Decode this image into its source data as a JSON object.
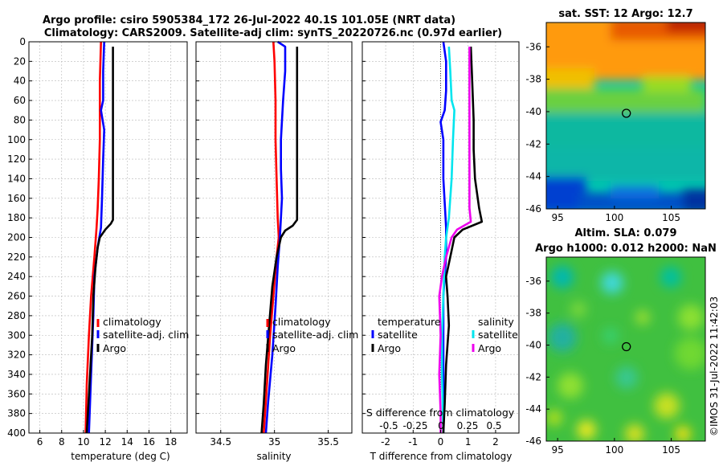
{
  "title_line1": "Argo profile: csiro 5905384_172 26-Jul-2022 40.1S 101.05E (NRT data)",
  "title_line2": "Climatology: CARS2009. Satellite-adj clim: synTS_20220726.nc (0.97d earlier)",
  "watermark": "©IMOS 31-Jul-2022 11:42:03",
  "colors": {
    "climatology": "#ff0000",
    "satellite_adj": "#0000ff",
    "argo": "#000000",
    "salinity_sat": "#00e5ee",
    "salinity_argo": "#ee00ee"
  },
  "chart_data": [
    {
      "type": "line",
      "id": "temperature",
      "xlabel": "temperature (deg C)",
      "xlim": [
        5,
        19.5
      ],
      "xticks": [
        6,
        8,
        10,
        12,
        14,
        16,
        18
      ],
      "xtick_labels": [
        "6",
        "8",
        "10",
        "12",
        "14",
        "16",
        "18"
      ],
      "ylim": [
        0,
        400
      ],
      "yticks": [
        0,
        20,
        40,
        60,
        80,
        100,
        120,
        140,
        160,
        180,
        200,
        220,
        240,
        260,
        280,
        300,
        320,
        340,
        360,
        380,
        400
      ],
      "ytick_labels": [
        "0",
        "20",
        "40",
        "60",
        "80",
        "100",
        "120",
        "140",
        "160",
        "180",
        "200",
        "220",
        "240",
        "260",
        "280",
        "300",
        "320",
        "340",
        "360",
        "380",
        "400"
      ],
      "legend": [
        "climatology",
        "satellite-adj. clim",
        "Argo"
      ],
      "series": [
        {
          "name": "climatology",
          "color": "#ff0000",
          "points": [
            [
              11.6,
              0
            ],
            [
              11.5,
              40
            ],
            [
              11.5,
              70
            ],
            [
              11.5,
              100
            ],
            [
              11.4,
              140
            ],
            [
              11.3,
              170
            ],
            [
              11.2,
              190
            ],
            [
              11.0,
              220
            ],
            [
              10.7,
              260
            ],
            [
              10.5,
              300
            ],
            [
              10.3,
              350
            ],
            [
              10.2,
              400
            ]
          ]
        },
        {
          "name": "satellite-adj. clim",
          "color": "#0000ff",
          "points": [
            [
              11.9,
              0
            ],
            [
              11.8,
              30
            ],
            [
              11.8,
              60
            ],
            [
              11.6,
              70
            ],
            [
              11.9,
              90
            ],
            [
              11.8,
              120
            ],
            [
              11.7,
              160
            ],
            [
              11.6,
              190
            ],
            [
              11.3,
              210
            ],
            [
              11.0,
              240
            ],
            [
              10.9,
              280
            ],
            [
              10.7,
              340
            ],
            [
              10.5,
              400
            ]
          ]
        },
        {
          "name": "Argo",
          "color": "#000000",
          "points": [
            [
              12.7,
              5
            ],
            [
              12.7,
              60
            ],
            [
              12.7,
              120
            ],
            [
              12.7,
              182
            ],
            [
              12.5,
              186
            ],
            [
              12.0,
              192
            ],
            [
              11.5,
              200
            ],
            [
              11.3,
              210
            ],
            [
              11.1,
              230
            ],
            [
              10.9,
              260
            ],
            [
              10.8,
              300
            ],
            [
              10.6,
              340
            ],
            [
              10.4,
              380
            ],
            [
              10.3,
              400
            ]
          ]
        }
      ]
    },
    {
      "type": "line",
      "id": "salinity",
      "xlabel": "salinity",
      "xlim": [
        34.27,
        35.72
      ],
      "xticks": [
        34.5,
        35,
        35.5
      ],
      "xtick_labels": [
        "34.5",
        "35",
        "35.5"
      ],
      "ylim": [
        0,
        400
      ],
      "legend": [
        "climatology",
        "satellite-adj. clim",
        "Argo"
      ],
      "series": [
        {
          "name": "climatology",
          "color": "#ff0000",
          "points": [
            [
              34.99,
              0
            ],
            [
              35.0,
              20
            ],
            [
              35.01,
              60
            ],
            [
              35.01,
              100
            ],
            [
              35.02,
              140
            ],
            [
              35.03,
              180
            ],
            [
              35.04,
              200
            ],
            [
              35.02,
              220
            ],
            [
              34.99,
              260
            ],
            [
              34.96,
              300
            ],
            [
              34.93,
              350
            ],
            [
              34.9,
              400
            ]
          ]
        },
        {
          "name": "satellite-adj. clim",
          "color": "#0000ff",
          "points": [
            [
              35.03,
              0
            ],
            [
              35.1,
              5
            ],
            [
              35.1,
              30
            ],
            [
              35.08,
              60
            ],
            [
              35.06,
              100
            ],
            [
              35.06,
              130
            ],
            [
              35.07,
              160
            ],
            [
              35.05,
              200
            ],
            [
              35.03,
              230
            ],
            [
              35.01,
              270
            ],
            [
              34.98,
              320
            ],
            [
              34.94,
              370
            ],
            [
              34.92,
              400
            ]
          ]
        },
        {
          "name": "Argo",
          "color": "#000000",
          "points": [
            [
              35.21,
              5
            ],
            [
              35.21,
              60
            ],
            [
              35.21,
              120
            ],
            [
              35.21,
              182
            ],
            [
              35.17,
              188
            ],
            [
              35.1,
              193
            ],
            [
              35.06,
              200
            ],
            [
              35.02,
              220
            ],
            [
              34.98,
              250
            ],
            [
              34.95,
              290
            ],
            [
              34.92,
              330
            ],
            [
              34.9,
              370
            ],
            [
              34.88,
              400
            ]
          ]
        }
      ]
    },
    {
      "type": "line",
      "id": "difference",
      "xlabel": "T difference from climatology",
      "secondary_xlabel": "S difference from climatology",
      "xlim": [
        -2.85,
        2.85
      ],
      "xticks": [
        -2,
        -1,
        0,
        1,
        2
      ],
      "xtick_labels": [
        "-2",
        "-1",
        "0",
        "1",
        "2"
      ],
      "secondary_xtick_labels": [
        "-0.5",
        "-0.25",
        "0",
        "0.25",
        "0.5"
      ],
      "ylim": [
        0,
        400
      ],
      "legend_left_title": "temperature",
      "legend_right_title": "salinity",
      "legend_left": [
        "satellite",
        "Argo"
      ],
      "legend_right": [
        "satellite",
        "Argo"
      ],
      "series": [
        {
          "name": "T satellite",
          "color": "#0000ff",
          "points": [
            [
              0.1,
              0
            ],
            [
              0.2,
              20
            ],
            [
              0.2,
              50
            ],
            [
              0.15,
              70
            ],
            [
              0.0,
              82
            ],
            [
              0.1,
              100
            ],
            [
              0.1,
              140
            ],
            [
              0.2,
              190
            ],
            [
              0.2,
              220
            ],
            [
              0.1,
              260
            ],
            [
              0.1,
              300
            ],
            [
              0.1,
              350
            ],
            [
              0.1,
              400
            ]
          ]
        },
        {
          "name": "S satellite",
          "color": "#00e5ee",
          "points": [
            [
              0.3,
              5
            ],
            [
              0.35,
              30
            ],
            [
              0.4,
              60
            ],
            [
              0.5,
              70
            ],
            [
              0.45,
              100
            ],
            [
              0.4,
              140
            ],
            [
              0.3,
              180
            ],
            [
              0.2,
              200
            ],
            [
              0.15,
              220
            ],
            [
              0.1,
              260
            ],
            [
              0.05,
              300
            ],
            [
              0.05,
              340
            ],
            [
              0.1,
              400
            ]
          ]
        },
        {
          "name": "T Argo",
          "color": "#000000",
          "points": [
            [
              1.1,
              5
            ],
            [
              1.15,
              40
            ],
            [
              1.2,
              80
            ],
            [
              1.2,
              110
            ],
            [
              1.25,
              140
            ],
            [
              1.35,
              160
            ],
            [
              1.4,
              170
            ],
            [
              1.5,
              184
            ],
            [
              0.8,
              192
            ],
            [
              0.5,
              200
            ],
            [
              0.35,
              220
            ],
            [
              0.2,
              240
            ],
            [
              0.25,
              260
            ],
            [
              0.3,
              290
            ],
            [
              0.2,
              330
            ],
            [
              0.15,
              370
            ],
            [
              0.1,
              400
            ]
          ]
        },
        {
          "name": "S Argo",
          "color": "#ee00ee",
          "points": [
            [
              1.05,
              5
            ],
            [
              1.05,
              40
            ],
            [
              1.05,
              80
            ],
            [
              1.05,
              120
            ],
            [
              1.05,
              170
            ],
            [
              1.1,
              184
            ],
            [
              0.6,
              192
            ],
            [
              0.4,
              200
            ],
            [
              0.2,
              220
            ],
            [
              0.05,
              240
            ],
            [
              -0.05,
              260
            ],
            [
              0.0,
              300
            ],
            [
              -0.05,
              340
            ],
            [
              0.0,
              380
            ],
            [
              0.0,
              400
            ]
          ]
        }
      ]
    },
    {
      "type": "heatmap",
      "id": "sst_map",
      "title": "sat. SST: 12 Argo: 12.7",
      "xlim": [
        94,
        108
      ],
      "ylim": [
        -46,
        -34.5
      ],
      "xticks": [
        95,
        100,
        105
      ],
      "xtick_labels": [
        "95",
        "100",
        "105"
      ],
      "yticks": [
        -46,
        -44,
        -42,
        -40,
        -38,
        -36
      ],
      "ytick_labels": [
        "-46",
        "-44",
        "-42",
        "-40",
        "-38",
        "-36"
      ],
      "marker": [
        101.05,
        -40.1
      ]
    },
    {
      "type": "heatmap",
      "id": "sla_map",
      "title_line1": "Altim. SLA: 0.079",
      "title_line2": "Argo h1000: 0.012 h2000: NaN",
      "xlim": [
        94,
        108
      ],
      "ylim": [
        -46,
        -34.5
      ],
      "xticks": [
        95,
        100,
        105
      ],
      "xtick_labels": [
        "95",
        "100",
        "105"
      ],
      "yticks": [
        -46,
        -44,
        -42,
        -40,
        -38,
        -36
      ],
      "ytick_labels": [
        "-46",
        "-44",
        "-42",
        "-40",
        "-38",
        "-36"
      ],
      "marker": [
        101.05,
        -40.1
      ]
    }
  ]
}
